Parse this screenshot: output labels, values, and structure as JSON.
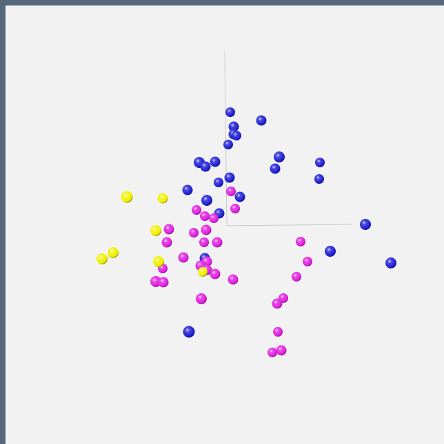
{
  "viewer": {
    "background": "#f2f2f2",
    "frame_color": "#56687b"
  },
  "chart_data": {
    "type": "scatter",
    "projection": "3d-perspective-view",
    "title": "",
    "axes": {
      "color": "#c8c8c8",
      "labels": []
    },
    "series": [
      {
        "color": "#1f1fd6",
        "points": [
          [
            334,
            163,
            7
          ],
          [
            379,
            175,
            7.5
          ],
          [
            339,
            184,
            7.5
          ],
          [
            339,
            195,
            7.5
          ],
          [
            343,
            197,
            7
          ],
          [
            331,
            210,
            7
          ],
          [
            405,
            228,
            8
          ],
          [
            464,
            236,
            7
          ],
          [
            289,
            236,
            8
          ],
          [
            298,
            242,
            7.5
          ],
          [
            312,
            235,
            7.5
          ],
          [
            399,
            245,
            7.5
          ],
          [
            463,
            260,
            7
          ],
          [
            333,
            258,
            7.5
          ],
          [
            317,
            265,
            7
          ],
          [
            272,
            276,
            7.5
          ],
          [
            348,
            286,
            7.5
          ],
          [
            300,
            291,
            8
          ],
          [
            318,
            310,
            7.5
          ],
          [
            530,
            326,
            8
          ],
          [
            297,
            375,
            7.5
          ],
          [
            479,
            365,
            8
          ],
          [
            567,
            382,
            8
          ],
          [
            274,
            482,
            8.5
          ]
        ]
      },
      {
        "color": "#e020e0",
        "points": [
          [
            335,
            278,
            7
          ],
          [
            341,
            303,
            7
          ],
          [
            285,
            305,
            7
          ],
          [
            297,
            314,
            7
          ],
          [
            310,
            317,
            7
          ],
          [
            245,
            333,
            7.5
          ],
          [
            281,
            338,
            7
          ],
          [
            299,
            334,
            7.5
          ],
          [
            242,
            352,
            7.5
          ],
          [
            296,
            352,
            7
          ],
          [
            315,
            352,
            7.5
          ],
          [
            436,
            351,
            7
          ],
          [
            266,
            374,
            7.5
          ],
          [
            300,
            380,
            7.5
          ],
          [
            446,
            380,
            7
          ],
          [
            291,
            386,
            7.5
          ],
          [
            236,
            390,
            7
          ],
          [
            300,
            392,
            7.5
          ],
          [
            312,
            398,
            7.5
          ],
          [
            430,
            402,
            7
          ],
          [
            338,
            406,
            7.5
          ],
          [
            226,
            409,
            8
          ],
          [
            237,
            410,
            7.5
          ],
          [
            292,
            434,
            8
          ],
          [
            411,
            433,
            7
          ],
          [
            402,
            441,
            7.5
          ],
          [
            403,
            482,
            7
          ],
          [
            408,
            509,
            7.5
          ],
          [
            395,
            512,
            7
          ]
        ]
      },
      {
        "color": "#f0f000",
        "points": [
          [
            184,
            286,
            8.5
          ],
          [
            236,
            288,
            7.5
          ],
          [
            226,
            335,
            8
          ],
          [
            164,
            367,
            8
          ],
          [
            148,
            376,
            8
          ],
          [
            230,
            380,
            8
          ],
          [
            294,
            395,
            7
          ]
        ]
      }
    ]
  }
}
